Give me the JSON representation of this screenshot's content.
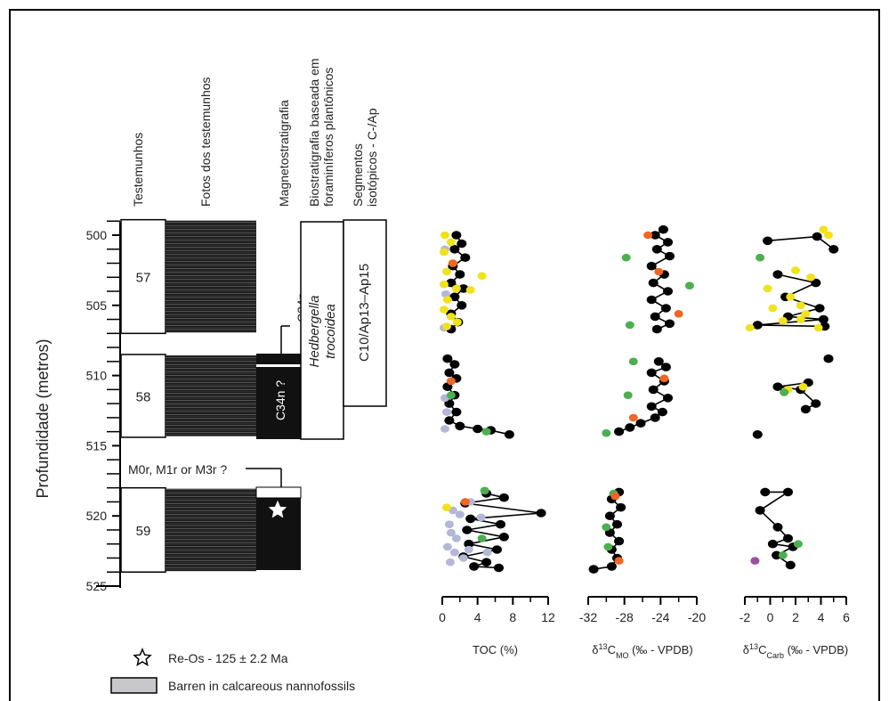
{
  "headers": {
    "cores": "Testemunhos",
    "photos": "Fotos dos testemunhos",
    "magneto": "Magnetostratigrafia",
    "bio_line1": "Biostratigrafia baseada em",
    "bio_line2": "foraminíferos plantônicos",
    "seg_line1": "Segmentos",
    "seg_line2": "isotópicos - C-/Ap"
  },
  "depth_axis": {
    "label": "Profundidade (metros)",
    "ticks": [
      500,
      505,
      510,
      515,
      520,
      525
    ],
    "range": [
      498.5,
      525
    ]
  },
  "cores": [
    {
      "label": "57",
      "top": 498.9,
      "bottom": 507.0
    },
    {
      "label": "58",
      "top": 508.5,
      "bottom": 514.4
    },
    {
      "label": "59",
      "top": 518.0,
      "bottom": 524.0
    }
  ],
  "magneto": {
    "c34n_label": "C34n",
    "c34nq_label": "C34n ?",
    "m_label": "M0r, M1r or M3r ?"
  },
  "biozone": {
    "name_line1": "Hedbergella",
    "name_line2": "trocoidea"
  },
  "isotope_segment": {
    "label": "C10/Ap13–Ap15"
  },
  "legend": {
    "star_label": "Re-Os - 125 ± 2.2 Ma",
    "barren_label": "Barren in calcareous nannofossils"
  },
  "colors": {
    "line": "#000000",
    "black": "#000000",
    "yellow": "#f0e21c",
    "green": "#4caf50",
    "orange": "#f26522",
    "lavender": "#b4b7d8",
    "purple": "#9b4fa0",
    "barren": "#c8c8cc"
  },
  "chart_data": [
    {
      "type": "scatter",
      "xlabel": "TOC (%)",
      "xlim": [
        0,
        12
      ],
      "xticks": [
        0,
        4,
        8,
        12
      ],
      "ylim": [
        498.5,
        525
      ],
      "series": [
        {
          "color": "black",
          "connected": true,
          "points": [
            [
              1.6,
              500.0
            ],
            [
              2.2,
              500.6
            ],
            [
              1.4,
              501.0
            ],
            [
              2.6,
              501.6
            ],
            [
              1.2,
              502.2
            ],
            [
              2.0,
              502.8
            ],
            [
              1.0,
              503.4
            ],
            [
              2.4,
              503.8
            ],
            [
              1.4,
              504.4
            ],
            [
              2.2,
              505.0
            ],
            [
              1.0,
              505.6
            ],
            [
              1.8,
              506.2
            ],
            [
              1.0,
              506.7
            ],
            [
              0.6,
              508.8
            ],
            [
              1.4,
              509.2
            ],
            [
              0.8,
              509.8
            ],
            [
              1.6,
              510.2
            ],
            [
              0.6,
              510.8
            ],
            [
              1.4,
              511.4
            ],
            [
              0.8,
              512.0
            ],
            [
              1.6,
              512.6
            ],
            [
              0.8,
              513.2
            ],
            [
              2.0,
              513.6
            ],
            [
              4.0,
              513.8
            ],
            [
              5.5,
              513.9
            ],
            [
              7.6,
              514.2
            ],
            [
              5.0,
              518.4
            ],
            [
              7.0,
              518.7
            ],
            [
              2.6,
              519.1
            ],
            [
              11.2,
              519.8
            ],
            [
              3.2,
              520.2
            ],
            [
              6.6,
              520.6
            ],
            [
              2.8,
              521.0
            ],
            [
              7.0,
              521.5
            ],
            [
              3.0,
              522.0
            ],
            [
              6.2,
              522.4
            ],
            [
              2.4,
              522.9
            ],
            [
              5.0,
              523.3
            ],
            [
              3.6,
              523.6
            ],
            [
              6.4,
              523.7
            ]
          ]
        },
        {
          "color": "yellow",
          "connected": false,
          "points": [
            [
              0.3,
              500.0
            ],
            [
              1.0,
              500.5
            ],
            [
              0.2,
              501.2
            ],
            [
              1.2,
              502.0
            ],
            [
              0.5,
              502.6
            ],
            [
              4.5,
              502.9
            ],
            [
              0.2,
              503.5
            ],
            [
              1.6,
              503.8
            ],
            [
              3.2,
              503.9
            ],
            [
              0.6,
              504.6
            ],
            [
              0.2,
              505.3
            ],
            [
              1.0,
              505.8
            ],
            [
              0.5,
              506.5
            ],
            [
              1.7,
              506.2
            ],
            [
              0.5,
              519.4
            ]
          ]
        },
        {
          "color": "lavender",
          "connected": false,
          "points": [
            [
              0.3,
              501.0
            ],
            [
              0.4,
              504.2
            ],
            [
              0.2,
              506.6
            ],
            [
              0.3,
              511.6
            ],
            [
              0.5,
              512.6
            ],
            [
              0.3,
              513.8
            ],
            [
              1.2,
              519.6
            ],
            [
              0.8,
              520.6
            ],
            [
              1.0,
              521.2
            ],
            [
              0.6,
              522.2
            ],
            [
              1.4,
              522.6
            ],
            [
              2.4,
              523.0
            ],
            [
              0.9,
              523.3
            ],
            [
              1.6,
              521.6
            ],
            [
              3.0,
              522.4
            ],
            [
              2.0,
              519.9
            ],
            [
              4.4,
              520.1
            ],
            [
              3.2,
              519.0
            ],
            [
              5.1,
              522.6
            ]
          ]
        },
        {
          "color": "green",
          "connected": false,
          "points": [
            [
              1.0,
              511.4
            ],
            [
              5.0,
              514.0
            ],
            [
              4.8,
              518.2
            ],
            [
              4.5,
              521.6
            ]
          ]
        },
        {
          "color": "orange",
          "connected": false,
          "points": [
            [
              1.2,
              502.0
            ],
            [
              1.0,
              510.4
            ],
            [
              2.6,
              519.0
            ]
          ]
        }
      ]
    },
    {
      "type": "scatter",
      "xlabel": "δ13CMO (‰ - VPDB)",
      "xlim": [
        -32,
        -20
      ],
      "xticks": [
        -32,
        -28,
        -24,
        -20
      ],
      "ylim": [
        498.5,
        525
      ],
      "series": [
        {
          "color": "black",
          "connected": true,
          "points": [
            [
              -23.7,
              499.6
            ],
            [
              -24.6,
              500.0
            ],
            [
              -23.2,
              500.5
            ],
            [
              -24.4,
              501.0
            ],
            [
              -23.0,
              501.5
            ],
            [
              -25.0,
              502.2
            ],
            [
              -23.6,
              502.8
            ],
            [
              -24.8,
              503.4
            ],
            [
              -23.2,
              504.0
            ],
            [
              -25.0,
              504.6
            ],
            [
              -23.4,
              505.2
            ],
            [
              -24.6,
              505.8
            ],
            [
              -23.0,
              506.3
            ],
            [
              -24.4,
              506.7
            ],
            [
              -24.2,
              509.0
            ],
            [
              -23.4,
              509.4
            ],
            [
              -25.0,
              509.8
            ],
            [
              -23.6,
              510.4
            ],
            [
              -24.8,
              511.0
            ],
            [
              -23.2,
              511.6
            ],
            [
              -25.0,
              512.2
            ],
            [
              -23.8,
              512.6
            ],
            [
              -24.6,
              513.0
            ],
            [
              -26.2,
              513.4
            ],
            [
              -27.4,
              513.7
            ],
            [
              -28.6,
              514.0
            ],
            [
              -28.6,
              518.3
            ],
            [
              -29.4,
              518.8
            ],
            [
              -28.4,
              519.4
            ],
            [
              -29.6,
              520.0
            ],
            [
              -28.8,
              520.6
            ],
            [
              -29.6,
              521.2
            ],
            [
              -28.6,
              521.8
            ],
            [
              -29.4,
              522.4
            ],
            [
              -28.8,
              523.0
            ],
            [
              -29.4,
              523.6
            ],
            [
              -31.4,
              523.8
            ]
          ]
        },
        {
          "color": "green",
          "connected": false,
          "points": [
            [
              -27.8,
              501.6
            ],
            [
              -20.8,
              503.6
            ],
            [
              -27.4,
              506.4
            ],
            [
              -27.0,
              509.0
            ],
            [
              -27.6,
              511.4
            ],
            [
              -30.0,
              514.1
            ],
            [
              -29.2,
              518.4
            ],
            [
              -30.0,
              520.8
            ],
            [
              -29.8,
              522.2
            ]
          ]
        },
        {
          "color": "orange",
          "connected": false,
          "points": [
            [
              -25.4,
              500.0
            ],
            [
              -24.2,
              502.6
            ],
            [
              -22.0,
              505.6
            ],
            [
              -23.6,
              510.2
            ],
            [
              -27.0,
              513.0
            ],
            [
              -29.0,
              518.6
            ],
            [
              -28.6,
              523.2
            ]
          ]
        }
      ]
    },
    {
      "type": "scatter",
      "xlabel": "δ13CCarb (‰ - VPDB)",
      "xlim": [
        -2,
        6
      ],
      "xticks": [
        -2,
        0,
        2,
        4,
        6
      ],
      "ylim": [
        498.5,
        525
      ],
      "series": [
        {
          "color": "black",
          "connected": true,
          "points": [
            [
              -0.2,
              500.4
            ],
            [
              3.7,
              500.1
            ],
            [
              5.0,
              501.0
            ],
            [
              0.6,
              502.8
            ],
            [
              3.6,
              503.4
            ],
            [
              1.2,
              504.4
            ],
            [
              3.9,
              505.2
            ],
            [
              1.4,
              505.8
            ],
            [
              4.2,
              506.0
            ],
            [
              -1.0,
              506.4
            ],
            [
              4.3,
              506.5
            ],
            [
              4.6,
              508.8
            ],
            [
              3.0,
              510.5
            ],
            [
              0.6,
              510.8
            ],
            [
              2.4,
              511.0
            ],
            [
              3.6,
              512.0
            ],
            [
              2.8,
              512.4
            ],
            [
              -1.0,
              514.2
            ],
            [
              -0.4,
              518.3
            ],
            [
              1.4,
              518.3
            ],
            [
              -0.8,
              519.6
            ],
            [
              0.6,
              520.8
            ],
            [
              1.4,
              521.6
            ],
            [
              0.2,
              522.0
            ],
            [
              1.8,
              522.2
            ],
            [
              0.5,
              522.8
            ],
            [
              1.6,
              523.5
            ]
          ]
        },
        {
          "color": "yellow",
          "connected": false,
          "points": [
            [
              4.2,
              499.6
            ],
            [
              4.6,
              500.0
            ],
            [
              2.0,
              502.5
            ],
            [
              3.2,
              503.0
            ],
            [
              -0.2,
              503.8
            ],
            [
              1.6,
              504.4
            ],
            [
              0.2,
              505.2
            ],
            [
              2.8,
              505.6
            ],
            [
              1.0,
              506.1
            ],
            [
              2.4,
              506.0
            ],
            [
              -1.6,
              506.6
            ],
            [
              2.4,
              505.0
            ],
            [
              3.8,
              506.6
            ],
            [
              1.4,
              511.0
            ],
            [
              2.6,
              510.8
            ]
          ]
        },
        {
          "color": "green",
          "connected": false,
          "points": [
            [
              -0.8,
              501.6
            ],
            [
              1.1,
              511.2
            ],
            [
              2.2,
              522.0
            ],
            [
              1.0,
              522.8
            ]
          ]
        },
        {
          "color": "purple",
          "connected": false,
          "points": [
            [
              -1.2,
              523.2
            ]
          ]
        }
      ]
    }
  ]
}
